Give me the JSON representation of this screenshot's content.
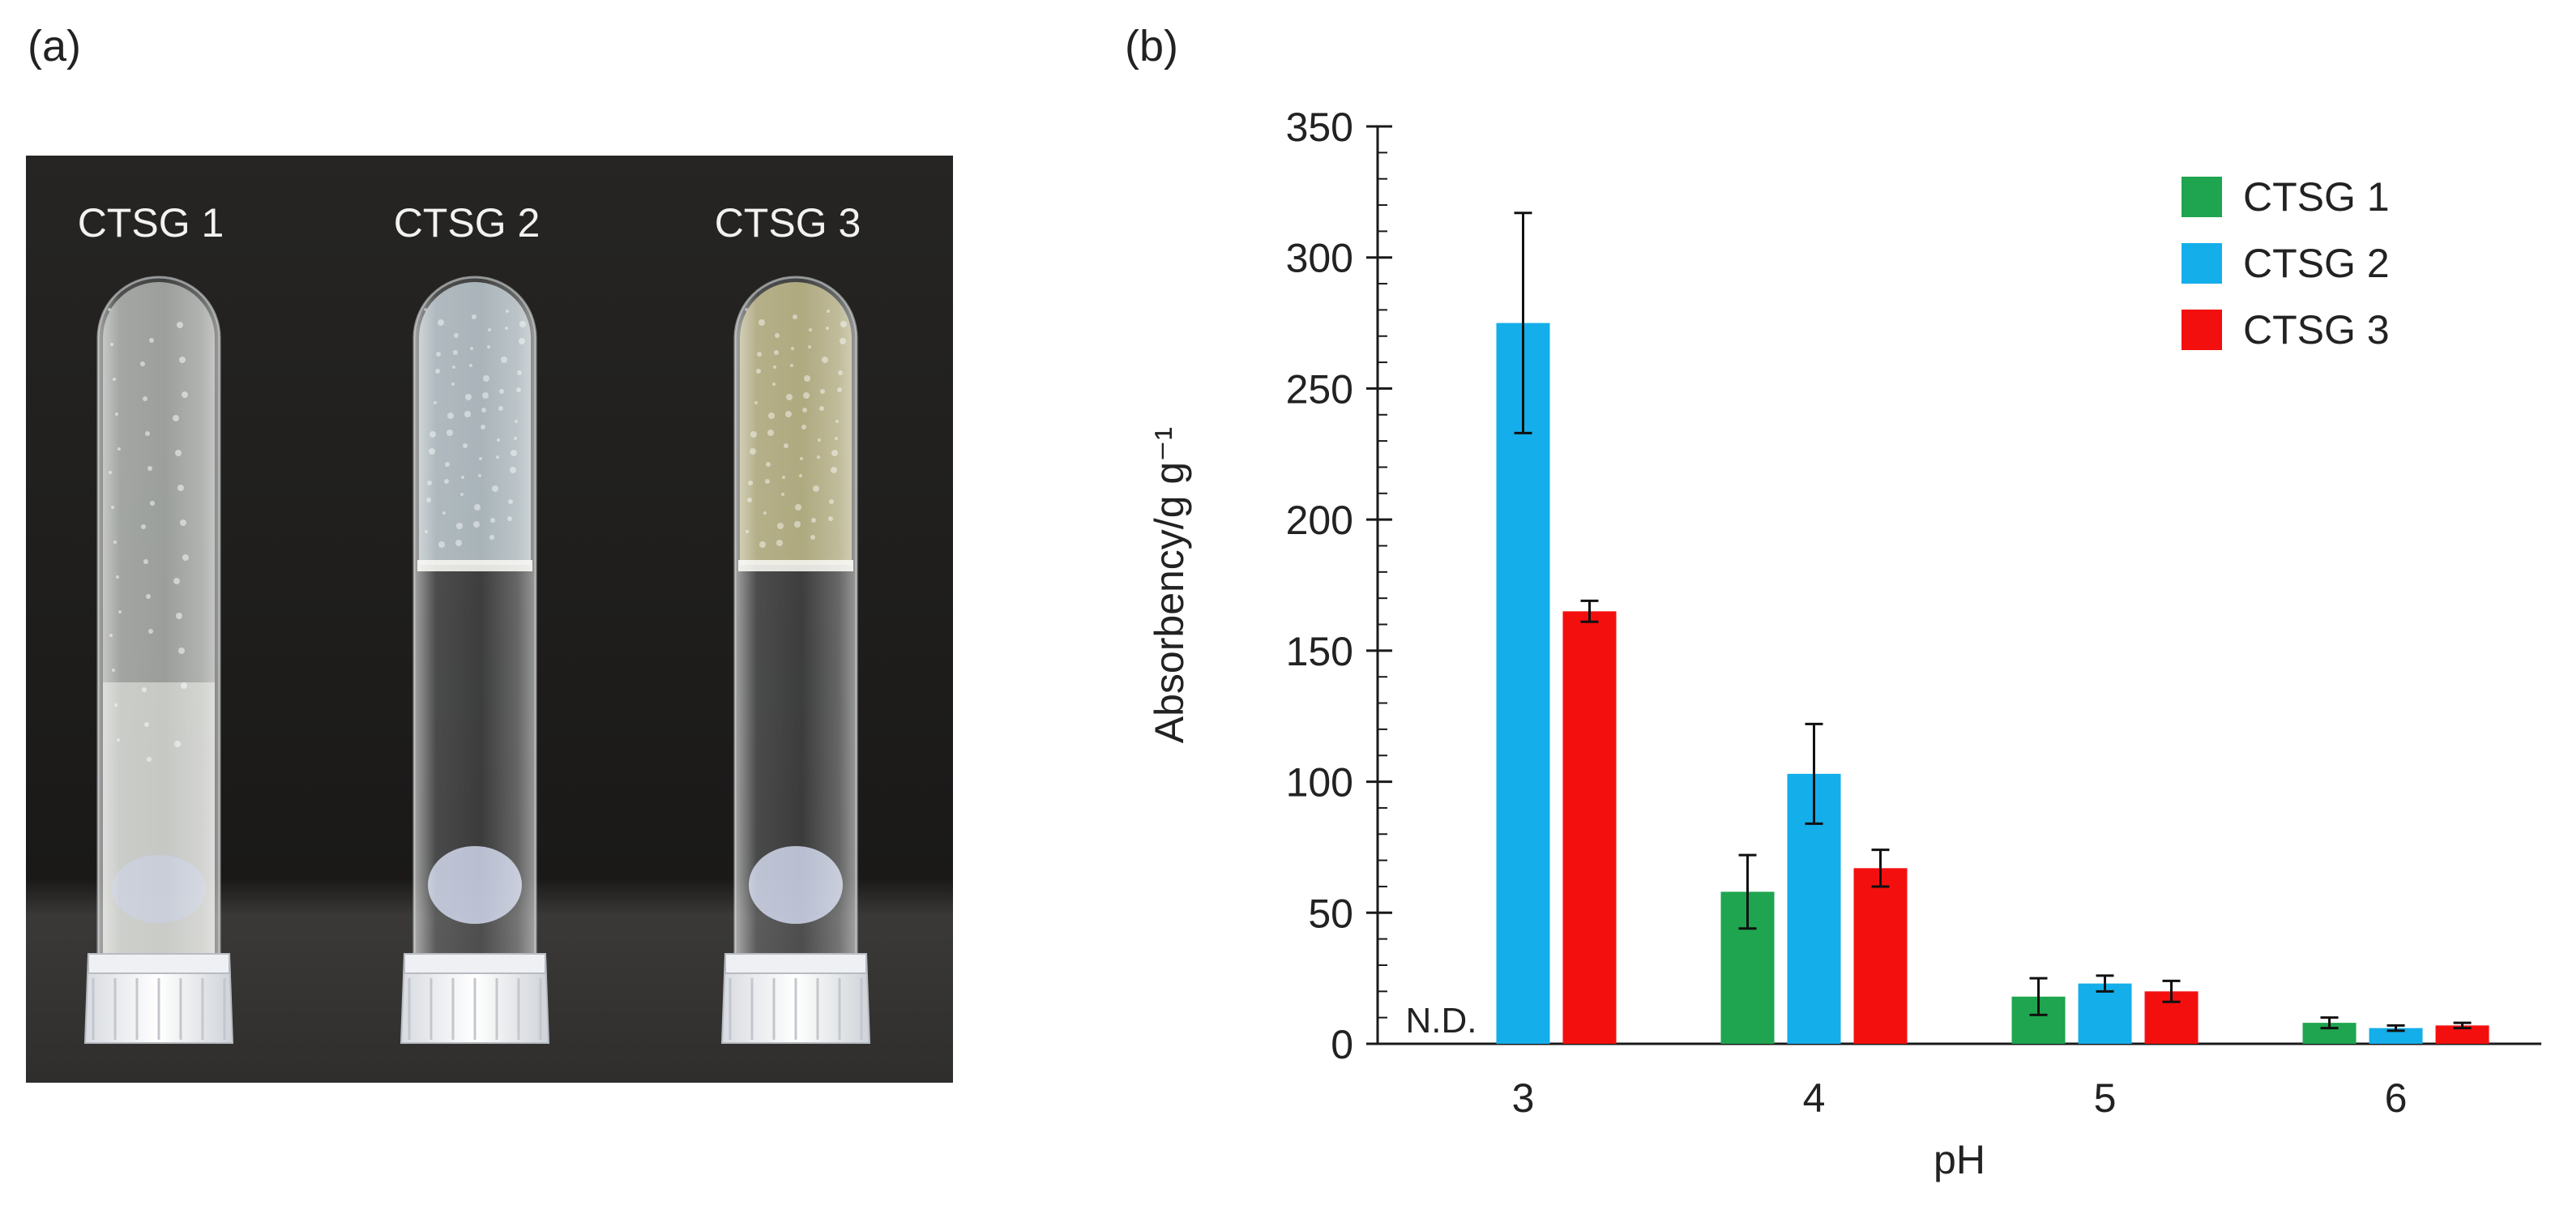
{
  "figure": {
    "panel_a_label": "(a)",
    "panel_b_label": "(b)"
  },
  "photo": {
    "tubes": [
      {
        "label": "CTSG 1",
        "fill": "#d9ded8",
        "gel_color": "#e8ece6",
        "gel": "bottom"
      },
      {
        "label": "CTSG 2",
        "fill": "#c2ccd1",
        "gel_color": "#b9c6cd",
        "gel": "top"
      },
      {
        "label": "CTSG 3",
        "fill": "#c9c296",
        "gel_color": "#bfb985",
        "gel": "top"
      }
    ],
    "background_color": "#1d1c1a"
  },
  "chart_data": {
    "type": "bar",
    "xlabel": "pH",
    "ylabel": "Absorbency/g g⁻¹",
    "categories": [
      "3",
      "4",
      "5",
      "6"
    ],
    "ylim": [
      0,
      350
    ],
    "yticks": [
      0,
      50,
      100,
      150,
      200,
      250,
      300,
      350
    ],
    "grid": false,
    "legend_position": "top-right",
    "series": [
      {
        "name": "CTSG 1",
        "color": "#1fa54f",
        "values": [
          null,
          58,
          18,
          8
        ],
        "errors": [
          null,
          14,
          7,
          2
        ]
      },
      {
        "name": "CTSG 2",
        "color": "#14aeea",
        "values": [
          275,
          103,
          23,
          6
        ],
        "errors": [
          42,
          19,
          3,
          1
        ]
      },
      {
        "name": "CTSG 3",
        "color": "#f40f0f",
        "values": [
          165,
          67,
          20,
          7
        ],
        "errors": [
          4,
          7,
          4,
          1
        ]
      }
    ],
    "annotations": [
      {
        "category": "3",
        "series": "CTSG 1",
        "text": "N.D."
      }
    ]
  }
}
